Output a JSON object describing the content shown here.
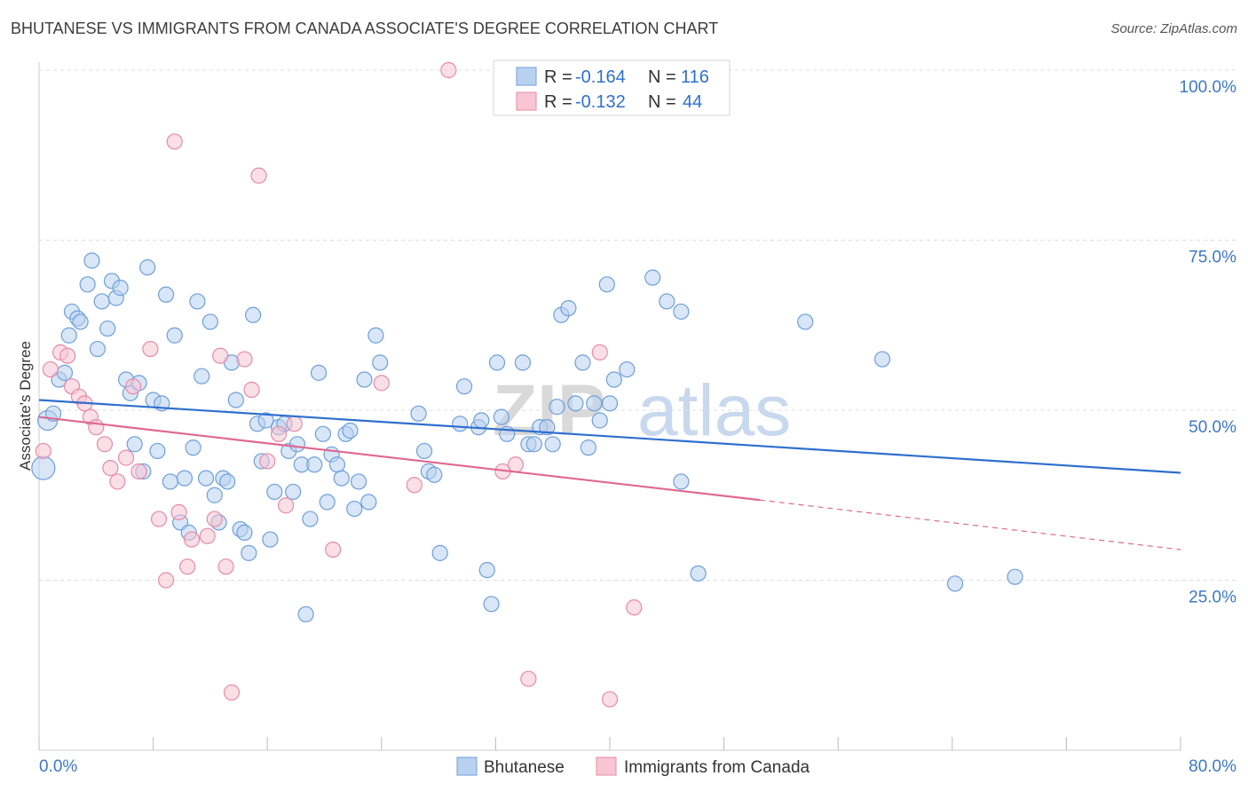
{
  "header": {
    "title": "BHUTANESE VS IMMIGRANTS FROM CANADA ASSOCIATE'S DEGREE CORRELATION CHART",
    "source": "Source: ZipAtlas.com"
  },
  "watermark": {
    "part1": "ZIP",
    "part2": "atlas"
  },
  "colors": {
    "blue_fill": "#b9d1f0",
    "blue_stroke": "#6d9fdc",
    "blue_line": "#2f6fcf",
    "pink_fill": "#f7c5d4",
    "pink_stroke": "#e88aa8",
    "pink_line": "#e0688f",
    "axis_text": "#3c78c8",
    "grid": "#dddddd"
  },
  "legend": {
    "rows": [
      {
        "r_label": "R = ",
        "r_value": "-0.164",
        "n_label": "N = ",
        "n_value": "116",
        "color": "blue"
      },
      {
        "r_label": "R = ",
        "r_value": "-0.132",
        "n_label": "N = ",
        "n_value": "44",
        "color": "pink"
      }
    ]
  },
  "chart_data": {
    "type": "scatter",
    "title": "BHUTANESE VS IMMIGRANTS FROM CANADA ASSOCIATE'S DEGREE CORRELATION CHART",
    "xlabel": "",
    "ylabel": "Associate's Degree",
    "xlim": [
      0,
      80
    ],
    "ylim": [
      0,
      100
    ],
    "x_tick_labels": [
      "0.0%",
      "80.0%"
    ],
    "y_tick_labels": [
      "100.0%",
      "75.0%",
      "50.0%",
      "25.0%"
    ],
    "y_ticks": [
      100,
      75,
      50,
      25
    ],
    "grid": true,
    "legend_placement": "top-center",
    "series": [
      {
        "name": "Bhutanese",
        "color": "blue",
        "R": -0.164,
        "N": 116,
        "trend": {
          "x": [
            0,
            80
          ],
          "y": [
            51.5,
            40.8
          ]
        },
        "points": [
          [
            0.3,
            41.5
          ],
          [
            0.6,
            48.5
          ],
          [
            1.0,
            49.5
          ],
          [
            1.4,
            54.5
          ],
          [
            1.8,
            55.5
          ],
          [
            2.1,
            61.0
          ],
          [
            2.3,
            64.5
          ],
          [
            2.7,
            63.5
          ],
          [
            2.9,
            63.0
          ],
          [
            3.4,
            68.5
          ],
          [
            3.7,
            72.0
          ],
          [
            4.1,
            59.0
          ],
          [
            4.4,
            66.0
          ],
          [
            4.8,
            62.0
          ],
          [
            5.1,
            69.0
          ],
          [
            5.4,
            66.5
          ],
          [
            5.7,
            68.0
          ],
          [
            6.1,
            54.5
          ],
          [
            6.4,
            52.5
          ],
          [
            6.7,
            45.0
          ],
          [
            7.0,
            54.0
          ],
          [
            7.3,
            41.0
          ],
          [
            7.6,
            71.0
          ],
          [
            8.0,
            51.5
          ],
          [
            8.3,
            44.0
          ],
          [
            8.6,
            51.0
          ],
          [
            8.9,
            67.0
          ],
          [
            9.2,
            39.5
          ],
          [
            9.5,
            61.0
          ],
          [
            9.9,
            33.5
          ],
          [
            10.2,
            40.0
          ],
          [
            10.5,
            32.0
          ],
          [
            10.8,
            44.5
          ],
          [
            11.1,
            66.0
          ],
          [
            11.4,
            55.0
          ],
          [
            11.7,
            40.0
          ],
          [
            12.0,
            63.0
          ],
          [
            12.3,
            37.5
          ],
          [
            12.6,
            33.5
          ],
          [
            12.9,
            40.0
          ],
          [
            13.2,
            39.5
          ],
          [
            13.5,
            57.0
          ],
          [
            13.8,
            51.5
          ],
          [
            14.1,
            32.5
          ],
          [
            14.4,
            32.0
          ],
          [
            14.7,
            29.0
          ],
          [
            15.0,
            64.0
          ],
          [
            15.3,
            48.0
          ],
          [
            15.6,
            42.5
          ],
          [
            15.9,
            48.5
          ],
          [
            16.2,
            31.0
          ],
          [
            16.5,
            38.0
          ],
          [
            16.8,
            47.5
          ],
          [
            17.2,
            48.0
          ],
          [
            17.5,
            44.0
          ],
          [
            17.8,
            38.0
          ],
          [
            18.1,
            45.0
          ],
          [
            18.4,
            42.0
          ],
          [
            18.7,
            20.0
          ],
          [
            19.0,
            34.0
          ],
          [
            19.3,
            42.0
          ],
          [
            19.6,
            55.5
          ],
          [
            19.9,
            46.5
          ],
          [
            20.2,
            36.5
          ],
          [
            20.5,
            43.5
          ],
          [
            20.9,
            42.0
          ],
          [
            21.2,
            40.0
          ],
          [
            21.5,
            46.5
          ],
          [
            21.8,
            47.0
          ],
          [
            22.1,
            35.5
          ],
          [
            22.4,
            39.5
          ],
          [
            22.8,
            54.5
          ],
          [
            23.1,
            36.5
          ],
          [
            23.6,
            61.0
          ],
          [
            23.9,
            57.0
          ],
          [
            26.6,
            49.5
          ],
          [
            27.0,
            44.0
          ],
          [
            27.3,
            41.0
          ],
          [
            27.7,
            40.5
          ],
          [
            28.1,
            29.0
          ],
          [
            29.5,
            48.0
          ],
          [
            29.8,
            53.5
          ],
          [
            30.8,
            47.5
          ],
          [
            31.0,
            48.5
          ],
          [
            31.4,
            26.5
          ],
          [
            31.7,
            21.5
          ],
          [
            32.1,
            57.0
          ],
          [
            32.4,
            49.0
          ],
          [
            32.8,
            46.5
          ],
          [
            33.9,
            57.0
          ],
          [
            34.3,
            45.0
          ],
          [
            34.7,
            45.0
          ],
          [
            35.1,
            47.5
          ],
          [
            35.6,
            47.5
          ],
          [
            36.0,
            45.0
          ],
          [
            36.3,
            50.5
          ],
          [
            36.6,
            64.0
          ],
          [
            37.1,
            65.0
          ],
          [
            37.6,
            51.0
          ],
          [
            38.1,
            57.0
          ],
          [
            38.5,
            44.5
          ],
          [
            38.9,
            51.0
          ],
          [
            39.3,
            48.5
          ],
          [
            39.8,
            68.5
          ],
          [
            40.0,
            51.0
          ],
          [
            40.3,
            54.5
          ],
          [
            41.2,
            56.0
          ],
          [
            43.0,
            69.5
          ],
          [
            44.0,
            66.0
          ],
          [
            45.0,
            64.5
          ],
          [
            45.0,
            39.5
          ],
          [
            46.2,
            26.0
          ],
          [
            53.7,
            63.0
          ],
          [
            59.1,
            57.5
          ],
          [
            64.2,
            24.5
          ],
          [
            68.4,
            25.5
          ]
        ]
      },
      {
        "name": "Immigrants from Canada",
        "color": "pink",
        "R": -0.132,
        "N": 44,
        "trend": {
          "x": [
            0,
            50.5
          ],
          "y": [
            49.0,
            36.8
          ]
        },
        "trend_dashed": {
          "x": [
            50.5,
            80
          ],
          "y": [
            36.8,
            29.5
          ]
        },
        "points": [
          [
            0.3,
            44.0
          ],
          [
            0.8,
            56.0
          ],
          [
            1.5,
            58.5
          ],
          [
            2.0,
            58.0
          ],
          [
            2.3,
            53.5
          ],
          [
            2.8,
            52.0
          ],
          [
            3.2,
            51.0
          ],
          [
            3.6,
            49.0
          ],
          [
            4.0,
            47.5
          ],
          [
            4.6,
            45.0
          ],
          [
            5.0,
            41.5
          ],
          [
            5.5,
            39.5
          ],
          [
            6.1,
            43.0
          ],
          [
            6.6,
            53.5
          ],
          [
            7.0,
            41.0
          ],
          [
            7.8,
            59.0
          ],
          [
            8.4,
            34.0
          ],
          [
            8.9,
            25.0
          ],
          [
            9.5,
            89.5
          ],
          [
            9.8,
            35.0
          ],
          [
            10.4,
            27.0
          ],
          [
            10.7,
            31.0
          ],
          [
            11.8,
            31.5
          ],
          [
            12.3,
            34.0
          ],
          [
            12.7,
            58.0
          ],
          [
            13.1,
            27.0
          ],
          [
            13.5,
            8.5
          ],
          [
            14.4,
            57.5
          ],
          [
            14.9,
            53.0
          ],
          [
            15.4,
            84.5
          ],
          [
            16.0,
            42.5
          ],
          [
            16.8,
            46.5
          ],
          [
            17.3,
            36.0
          ],
          [
            17.9,
            48.0
          ],
          [
            20.6,
            29.5
          ],
          [
            24.0,
            54.0
          ],
          [
            26.3,
            39.0
          ],
          [
            28.7,
            100.0
          ],
          [
            32.5,
            41.0
          ],
          [
            33.4,
            42.0
          ],
          [
            34.3,
            10.5
          ],
          [
            39.3,
            58.5
          ],
          [
            40.0,
            7.5
          ],
          [
            41.7,
            21.0
          ]
        ]
      }
    ]
  },
  "axes": {
    "ylabel": "Associate's Degree",
    "x_start_label": "0.0%",
    "x_end_label": "80.0%",
    "y_labels": [
      "100.0%",
      "75.0%",
      "50.0%",
      "25.0%"
    ]
  },
  "bottom_legend": {
    "items": [
      {
        "label": "Bhutanese",
        "color": "blue"
      },
      {
        "label": "Immigrants from Canada",
        "color": "pink"
      }
    ]
  }
}
